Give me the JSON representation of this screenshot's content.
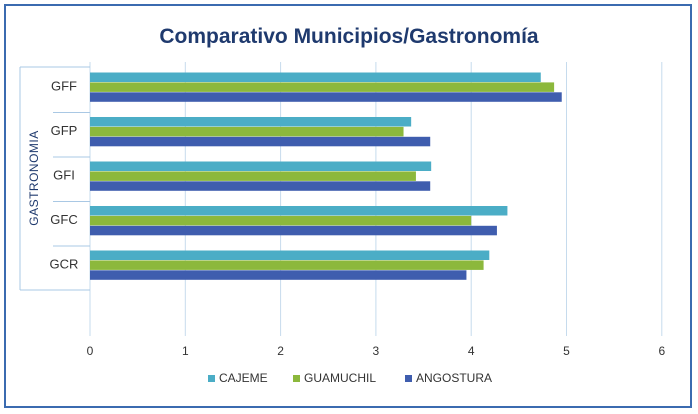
{
  "chart_data": {
    "type": "bar",
    "orientation": "horizontal",
    "title": "Comparativo Municipios/Gastronomía",
    "ylabel": "GASTRONOMIA",
    "xlabel": "",
    "categories": [
      "GFF",
      "GFP",
      "GFI",
      "GFC",
      "GCR"
    ],
    "series": [
      {
        "name": "CAJEME",
        "color": "#4badc6",
        "values": [
          4.73,
          3.37,
          3.58,
          4.38,
          4.19
        ]
      },
      {
        "name": "GUAMUCHIL",
        "color": "#8cb83c",
        "values": [
          4.87,
          3.29,
          3.42,
          4.0,
          4.13
        ]
      },
      {
        "name": "ANGOSTURA",
        "color": "#3f5dae",
        "values": [
          4.95,
          3.57,
          3.57,
          4.27,
          3.95
        ]
      }
    ],
    "xlim": [
      0,
      6
    ],
    "xticks": [
      "0",
      "1",
      "2",
      "3",
      "4",
      "5",
      "6"
    ],
    "grid": true,
    "legend": "bottom-center"
  }
}
